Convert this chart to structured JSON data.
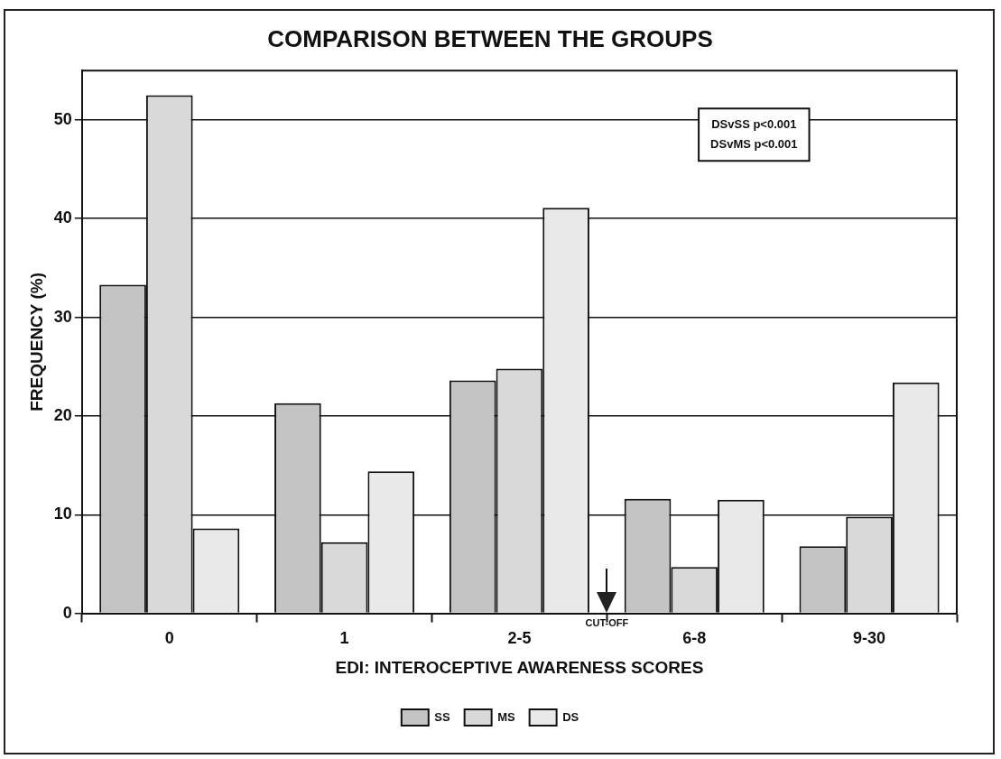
{
  "chart_data": {
    "type": "bar",
    "title": "COMPARISON BETWEEN THE GROUPS",
    "xlabel": "EDI: INTEROCEPTIVE AWARENESS SCORES",
    "ylabel": "FREQUENCY (%)",
    "categories": [
      "0",
      "1",
      "2-5",
      "6-8",
      "9-30"
    ],
    "series": [
      {
        "name": "SS",
        "color": "#c4c4c4",
        "values": [
          33.3,
          21.3,
          23.6,
          11.6,
          6.8
        ]
      },
      {
        "name": "MS",
        "color": "#d9d9d9",
        "values": [
          52.5,
          7.2,
          24.8,
          4.7,
          9.8
        ]
      },
      {
        "name": "DS",
        "color": "#e9e9e9",
        "values": [
          8.6,
          14.4,
          41.1,
          11.5,
          23.4
        ]
      }
    ],
    "ylim": [
      0,
      55
    ],
    "yticks": [
      0,
      10,
      20,
      30,
      40,
      50
    ],
    "grid": "y",
    "legend": "bottom",
    "annotations": [
      "DSvSS p<0.001\nDSvMS p<0.001",
      "CUT-OFF"
    ]
  }
}
